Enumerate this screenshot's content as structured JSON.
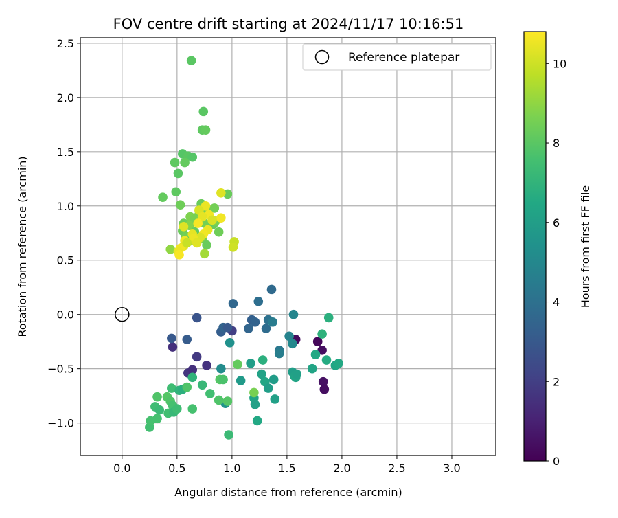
{
  "chart_data": {
    "type": "scatter",
    "title": "FOV centre drift starting at 2024/11/17 10:16:51",
    "xlabel": "Angular distance from reference (arcmin)",
    "ylabel": "Rotation from reference (arcmin)",
    "xlim": [
      -0.38,
      3.4
    ],
    "ylim": [
      -1.3,
      2.55
    ],
    "x_ticks": [
      0.0,
      0.5,
      1.0,
      1.5,
      2.0,
      2.5,
      3.0
    ],
    "x_tick_labels": [
      "0.0",
      "0.5",
      "1.0",
      "1.5",
      "2.0",
      "2.5",
      "3.0"
    ],
    "y_ticks": [
      -1.0,
      -0.5,
      0.0,
      0.5,
      1.0,
      1.5,
      2.0,
      2.5
    ],
    "y_tick_labels": [
      "−1.0",
      "−0.5",
      "0.0",
      "0.5",
      "1.0",
      "1.5",
      "2.0",
      "2.5"
    ],
    "grid": true,
    "legend": {
      "position": "top-right",
      "entries": [
        "Reference platepar"
      ]
    },
    "reference_point": {
      "x": 0.0,
      "y": 0.0
    },
    "colorbar": {
      "label": "Hours from first FF file",
      "colormap": "viridis",
      "range": [
        0,
        10.8
      ],
      "ticks": [
        0,
        2,
        4,
        6,
        8,
        10
      ],
      "tick_labels": [
        "0",
        "2",
        "4",
        "6",
        "8",
        "10"
      ]
    },
    "points": [
      {
        "x": 1.58,
        "y": -0.23,
        "c": 0.3
      },
      {
        "x": 1.78,
        "y": -0.25,
        "c": 0.2
      },
      {
        "x": 1.82,
        "y": -0.33,
        "c": 0.4
      },
      {
        "x": 1.83,
        "y": -0.62,
        "c": 0.5
      },
      {
        "x": 1.84,
        "y": -0.69,
        "c": 0.4
      },
      {
        "x": 0.46,
        "y": -0.3,
        "c": 1.5
      },
      {
        "x": 0.68,
        "y": -0.39,
        "c": 1.8
      },
      {
        "x": 0.77,
        "y": -0.47,
        "c": 1.6
      },
      {
        "x": 0.6,
        "y": -0.54,
        "c": 1.7
      },
      {
        "x": 0.64,
        "y": -0.51,
        "c": 1.5
      },
      {
        "x": 1.0,
        "y": -0.15,
        "c": 2.0
      },
      {
        "x": 0.45,
        "y": -0.22,
        "c": 3.0
      },
      {
        "x": 0.59,
        "y": -0.23,
        "c": 3.1
      },
      {
        "x": 0.68,
        "y": -0.03,
        "c": 2.8
      },
      {
        "x": 0.9,
        "y": -0.16,
        "c": 3.2
      },
      {
        "x": 0.92,
        "y": -0.12,
        "c": 3.4
      },
      {
        "x": 0.96,
        "y": -0.12,
        "c": 3.0
      },
      {
        "x": 1.01,
        "y": 0.1,
        "c": 3.6
      },
      {
        "x": 1.15,
        "y": -0.13,
        "c": 3.5
      },
      {
        "x": 1.18,
        "y": -0.05,
        "c": 3.3
      },
      {
        "x": 1.21,
        "y": -0.07,
        "c": 3.4
      },
      {
        "x": 1.24,
        "y": 0.12,
        "c": 3.9
      },
      {
        "x": 1.31,
        "y": -0.13,
        "c": 3.8
      },
      {
        "x": 1.33,
        "y": -0.05,
        "c": 4.0
      },
      {
        "x": 1.36,
        "y": 0.23,
        "c": 3.7
      },
      {
        "x": 1.37,
        "y": -0.07,
        "c": 4.5
      },
      {
        "x": 1.43,
        "y": -0.33,
        "c": 4.3
      },
      {
        "x": 1.43,
        "y": -0.36,
        "c": 4.6
      },
      {
        "x": 1.52,
        "y": -0.2,
        "c": 4.8
      },
      {
        "x": 1.55,
        "y": -0.27,
        "c": 5.0
      },
      {
        "x": 1.56,
        "y": 0.0,
        "c": 4.9
      },
      {
        "x": 0.9,
        "y": -0.5,
        "c": 5.2
      },
      {
        "x": 0.94,
        "y": -0.82,
        "c": 5.5
      },
      {
        "x": 0.98,
        "y": -0.26,
        "c": 5.4
      },
      {
        "x": 1.08,
        "y": -0.61,
        "c": 5.8
      },
      {
        "x": 1.17,
        "y": -0.45,
        "c": 6.0
      },
      {
        "x": 1.2,
        "y": -0.77,
        "c": 6.3
      },
      {
        "x": 1.21,
        "y": -0.83,
        "c": 6.1
      },
      {
        "x": 1.23,
        "y": -0.98,
        "c": 6.5
      },
      {
        "x": 1.27,
        "y": -0.55,
        "c": 6.2
      },
      {
        "x": 1.28,
        "y": -0.42,
        "c": 6.8
      },
      {
        "x": 1.3,
        "y": -0.62,
        "c": 6.4
      },
      {
        "x": 1.33,
        "y": -0.68,
        "c": 6.0
      },
      {
        "x": 1.38,
        "y": -0.6,
        "c": 5.9
      },
      {
        "x": 1.39,
        "y": -0.78,
        "c": 6.1
      },
      {
        "x": 1.55,
        "y": -0.53,
        "c": 6.0
      },
      {
        "x": 1.57,
        "y": -0.57,
        "c": 6.2
      },
      {
        "x": 1.58,
        "y": -0.58,
        "c": 6.3
      },
      {
        "x": 1.59,
        "y": -0.55,
        "c": 6.1
      },
      {
        "x": 1.73,
        "y": -0.5,
        "c": 6.3
      },
      {
        "x": 1.76,
        "y": -0.37,
        "c": 6.5
      },
      {
        "x": 1.82,
        "y": -0.18,
        "c": 6.9
      },
      {
        "x": 1.86,
        "y": -0.42,
        "c": 6.6
      },
      {
        "x": 1.88,
        "y": -0.03,
        "c": 6.8
      },
      {
        "x": 1.94,
        "y": -0.47,
        "c": 6.4
      },
      {
        "x": 1.97,
        "y": -0.45,
        "c": 6.5
      },
      {
        "x": 0.25,
        "y": -1.04,
        "c": 7.5
      },
      {
        "x": 0.26,
        "y": -0.98,
        "c": 7.6
      },
      {
        "x": 0.3,
        "y": -0.85,
        "c": 7.4
      },
      {
        "x": 0.32,
        "y": -0.76,
        "c": 7.8
      },
      {
        "x": 0.32,
        "y": -0.96,
        "c": 7.6
      },
      {
        "x": 0.34,
        "y": -0.88,
        "c": 7.3
      },
      {
        "x": 0.41,
        "y": -0.76,
        "c": 7.9
      },
      {
        "x": 0.42,
        "y": -0.91,
        "c": 7.5
      },
      {
        "x": 0.44,
        "y": -0.8,
        "c": 7.8
      },
      {
        "x": 0.45,
        "y": -0.68,
        "c": 7.4
      },
      {
        "x": 0.46,
        "y": -0.84,
        "c": 7.6
      },
      {
        "x": 0.47,
        "y": -0.9,
        "c": 7.2
      },
      {
        "x": 0.5,
        "y": -0.87,
        "c": 7.4
      },
      {
        "x": 0.52,
        "y": -0.7,
        "c": 7.0
      },
      {
        "x": 0.55,
        "y": -0.69,
        "c": 6.8
      },
      {
        "x": 0.59,
        "y": -0.67,
        "c": 7.8
      },
      {
        "x": 0.64,
        "y": -0.58,
        "c": 7.0
      },
      {
        "x": 0.64,
        "y": -0.87,
        "c": 7.6
      },
      {
        "x": 0.73,
        "y": -0.65,
        "c": 7.2
      },
      {
        "x": 0.8,
        "y": -0.73,
        "c": 7.5
      },
      {
        "x": 0.88,
        "y": -0.79,
        "c": 7.8
      },
      {
        "x": 0.89,
        "y": -0.6,
        "c": 7.9
      },
      {
        "x": 0.92,
        "y": -0.6,
        "c": 7.7
      },
      {
        "x": 0.96,
        "y": -0.8,
        "c": 7.9
      },
      {
        "x": 0.97,
        "y": -1.11,
        "c": 7.3
      },
      {
        "x": 1.05,
        "y": -0.46,
        "c": 8.2
      },
      {
        "x": 1.2,
        "y": -0.72,
        "c": 8.6
      },
      {
        "x": 0.63,
        "y": 2.34,
        "c": 8.0
      },
      {
        "x": 0.74,
        "y": 1.87,
        "c": 8.0
      },
      {
        "x": 0.73,
        "y": 1.7,
        "c": 8.1
      },
      {
        "x": 0.76,
        "y": 1.7,
        "c": 8.2
      },
      {
        "x": 0.55,
        "y": 1.48,
        "c": 7.9
      },
      {
        "x": 0.6,
        "y": 1.46,
        "c": 8.0
      },
      {
        "x": 0.64,
        "y": 1.45,
        "c": 7.9
      },
      {
        "x": 0.48,
        "y": 1.4,
        "c": 8.1
      },
      {
        "x": 0.57,
        "y": 1.4,
        "c": 8.2
      },
      {
        "x": 0.51,
        "y": 1.3,
        "c": 8.0
      },
      {
        "x": 0.49,
        "y": 1.13,
        "c": 8.1
      },
      {
        "x": 0.37,
        "y": 1.08,
        "c": 8.2
      },
      {
        "x": 0.96,
        "y": 1.11,
        "c": 8.3
      },
      {
        "x": 0.53,
        "y": 1.01,
        "c": 8.4
      },
      {
        "x": 0.72,
        "y": 1.02,
        "c": 8.3
      },
      {
        "x": 0.84,
        "y": 0.98,
        "c": 8.5
      },
      {
        "x": 0.78,
        "y": 0.94,
        "c": 8.6
      },
      {
        "x": 0.62,
        "y": 0.9,
        "c": 8.7
      },
      {
        "x": 0.7,
        "y": 0.92,
        "c": 8.5
      },
      {
        "x": 0.66,
        "y": 0.88,
        "c": 8.6
      },
      {
        "x": 0.56,
        "y": 0.84,
        "c": 8.4
      },
      {
        "x": 0.61,
        "y": 0.82,
        "c": 8.8
      },
      {
        "x": 0.75,
        "y": 0.84,
        "c": 8.5
      },
      {
        "x": 0.83,
        "y": 0.83,
        "c": 8.3
      },
      {
        "x": 0.85,
        "y": 0.86,
        "c": 8.6
      },
      {
        "x": 0.55,
        "y": 0.77,
        "c": 8.3
      },
      {
        "x": 0.66,
        "y": 0.76,
        "c": 8.2
      },
      {
        "x": 0.88,
        "y": 0.76,
        "c": 8.4
      },
      {
        "x": 0.58,
        "y": 0.72,
        "c": 8.5
      },
      {
        "x": 0.73,
        "y": 0.7,
        "c": 8.6
      },
      {
        "x": 0.63,
        "y": 0.68,
        "c": 8.2
      },
      {
        "x": 0.77,
        "y": 0.64,
        "c": 8.3
      },
      {
        "x": 0.44,
        "y": 0.6,
        "c": 9.0
      },
      {
        "x": 0.75,
        "y": 0.56,
        "c": 9.3
      },
      {
        "x": 0.9,
        "y": 1.12,
        "c": 10.3
      },
      {
        "x": 0.76,
        "y": 1.0,
        "c": 10.5
      },
      {
        "x": 0.7,
        "y": 0.96,
        "c": 10.2
      },
      {
        "x": 0.79,
        "y": 0.92,
        "c": 10.6
      },
      {
        "x": 0.73,
        "y": 0.9,
        "c": 10.4
      },
      {
        "x": 0.9,
        "y": 0.89,
        "c": 10.6
      },
      {
        "x": 0.82,
        "y": 0.87,
        "c": 10.2
      },
      {
        "x": 0.69,
        "y": 0.84,
        "c": 10.7
      },
      {
        "x": 0.56,
        "y": 0.81,
        "c": 10.3
      },
      {
        "x": 0.78,
        "y": 0.78,
        "c": 10.5
      },
      {
        "x": 0.64,
        "y": 0.74,
        "c": 10.4
      },
      {
        "x": 0.74,
        "y": 0.74,
        "c": 10.6
      },
      {
        "x": 0.71,
        "y": 0.71,
        "c": 10.2
      },
      {
        "x": 0.65,
        "y": 0.7,
        "c": 10.5
      },
      {
        "x": 0.57,
        "y": 0.68,
        "c": 10.6
      },
      {
        "x": 0.68,
        "y": 0.66,
        "c": 10.3
      },
      {
        "x": 0.56,
        "y": 0.63,
        "c": 10.4
      },
      {
        "x": 0.53,
        "y": 0.61,
        "c": 10.6
      },
      {
        "x": 0.51,
        "y": 0.58,
        "c": 10.5
      },
      {
        "x": 0.52,
        "y": 0.55,
        "c": 10.7
      },
      {
        "x": 1.02,
        "y": 0.67,
        "c": 9.9
      },
      {
        "x": 1.01,
        "y": 0.62,
        "c": 10.0
      },
      {
        "x": 0.59,
        "y": 0.66,
        "c": 9.9
      }
    ]
  }
}
